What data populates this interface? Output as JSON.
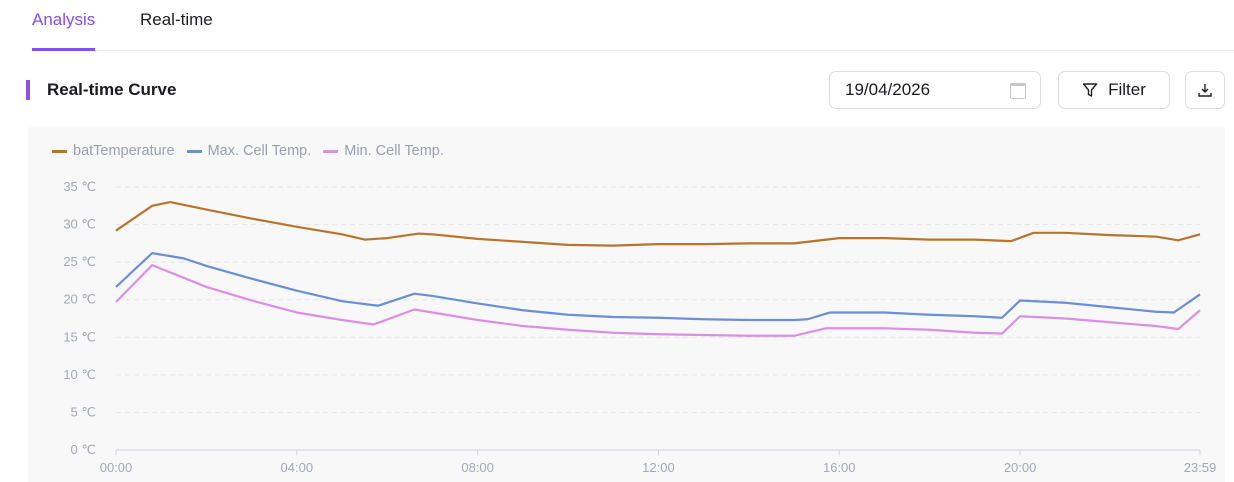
{
  "tabs": [
    {
      "label": "Analysis",
      "active": true
    },
    {
      "label": "Real-time",
      "active": false
    }
  ],
  "section_title": "Real-time Curve",
  "date_value": "19/04/2026",
  "filter_label": "Filter",
  "accent": "#8150f0",
  "chart_data": {
    "type": "line",
    "x_unit": "hours",
    "xlim": [
      0,
      23.98
    ],
    "ylim": [
      0,
      35
    ],
    "yticks": [
      0,
      5,
      10,
      15,
      20,
      25,
      30,
      35
    ],
    "ytick_labels": [
      "0 ℃",
      "5 ℃",
      "10 ℃",
      "15 ℃",
      "20 ℃",
      "25 ℃",
      "30 ℃",
      "35 ℃"
    ],
    "xticks": [
      0,
      4,
      8,
      12,
      16,
      20,
      23.98
    ],
    "xtick_labels": [
      "00:00",
      "04:00",
      "08:00",
      "12:00",
      "16:00",
      "20:00",
      "23:59"
    ],
    "grid": true,
    "legend_position": "top-left",
    "series": [
      {
        "name": "batTemperature",
        "color": "#b8742c",
        "points": [
          [
            0,
            29.2
          ],
          [
            0.8,
            32.5
          ],
          [
            1.2,
            33
          ],
          [
            2,
            32
          ],
          [
            3,
            30.8
          ],
          [
            4,
            29.7
          ],
          [
            5,
            28.7
          ],
          [
            5.5,
            28
          ],
          [
            6,
            28.2
          ],
          [
            6.7,
            28.8
          ],
          [
            7,
            28.7
          ],
          [
            8,
            28.1
          ],
          [
            9,
            27.7
          ],
          [
            10,
            27.3
          ],
          [
            11,
            27.2
          ],
          [
            12,
            27.4
          ],
          [
            13,
            27.4
          ],
          [
            14,
            27.5
          ],
          [
            15,
            27.5
          ],
          [
            16,
            28.2
          ],
          [
            17,
            28.2
          ],
          [
            18,
            28
          ],
          [
            19,
            28
          ],
          [
            19.8,
            27.8
          ],
          [
            20.3,
            28.9
          ],
          [
            21,
            28.9
          ],
          [
            22,
            28.6
          ],
          [
            23,
            28.4
          ],
          [
            23.5,
            27.9
          ],
          [
            23.98,
            28.7
          ]
        ]
      },
      {
        "name": "Max. Cell Temp.",
        "color": "#6890d4",
        "points": [
          [
            0,
            21.7
          ],
          [
            0.8,
            26.2
          ],
          [
            1.5,
            25.5
          ],
          [
            2,
            24.5
          ],
          [
            3,
            22.8
          ],
          [
            4,
            21.2
          ],
          [
            5,
            19.8
          ],
          [
            5.8,
            19.2
          ],
          [
            6.6,
            20.8
          ],
          [
            7,
            20.5
          ],
          [
            8,
            19.5
          ],
          [
            9,
            18.6
          ],
          [
            10,
            18
          ],
          [
            11,
            17.7
          ],
          [
            12,
            17.6
          ],
          [
            13,
            17.4
          ],
          [
            14,
            17.3
          ],
          [
            15,
            17.3
          ],
          [
            15.3,
            17.4
          ],
          [
            15.8,
            18.3
          ],
          [
            17,
            18.3
          ],
          [
            18,
            18
          ],
          [
            19,
            17.8
          ],
          [
            19.6,
            17.6
          ],
          [
            20,
            19.9
          ],
          [
            21,
            19.6
          ],
          [
            22,
            19
          ],
          [
            23,
            18.4
          ],
          [
            23.4,
            18.3
          ],
          [
            23.98,
            20.7
          ]
        ]
      },
      {
        "name": "Min. Cell Temp.",
        "color": "#dc8ee4",
        "points": [
          [
            0,
            19.7
          ],
          [
            0.8,
            24.6
          ],
          [
            2,
            21.7
          ],
          [
            3,
            19.9
          ],
          [
            4,
            18.3
          ],
          [
            5,
            17.3
          ],
          [
            5.7,
            16.7
          ],
          [
            6.6,
            18.7
          ],
          [
            7,
            18.3
          ],
          [
            8,
            17.3
          ],
          [
            9,
            16.5
          ],
          [
            10,
            16
          ],
          [
            11,
            15.6
          ],
          [
            12,
            15.4
          ],
          [
            13,
            15.3
          ],
          [
            14,
            15.2
          ],
          [
            15,
            15.2
          ],
          [
            15.7,
            16.2
          ],
          [
            17,
            16.2
          ],
          [
            18,
            16
          ],
          [
            19,
            15.6
          ],
          [
            19.6,
            15.5
          ],
          [
            20,
            17.8
          ],
          [
            21,
            17.5
          ],
          [
            22,
            17
          ],
          [
            23,
            16.5
          ],
          [
            23.5,
            16.1
          ],
          [
            23.98,
            18.6
          ]
        ]
      }
    ]
  }
}
